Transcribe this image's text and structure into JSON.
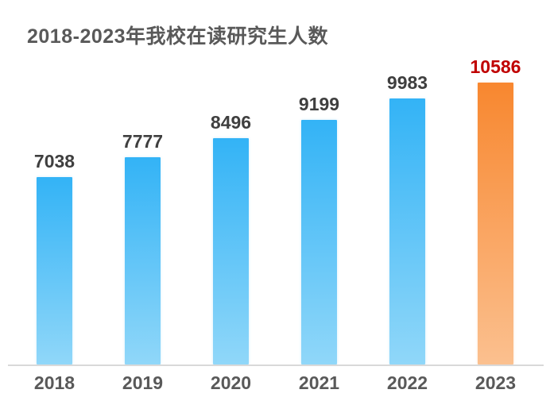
{
  "chart_data": {
    "type": "bar",
    "title": "2018-2023年我校在读研究生人数",
    "categories": [
      "2018",
      "2019",
      "2020",
      "2021",
      "2022",
      "2023"
    ],
    "values": [
      7038,
      7777,
      8496,
      9199,
      9983,
      10586
    ],
    "xlabel": "",
    "ylabel": "",
    "ylim": [
      0,
      10586
    ],
    "grid": false,
    "legend": false,
    "data_labels_shown": true,
    "highlight_index": 5,
    "colors": {
      "bar_gradient_top": "#33B3F6",
      "bar_gradient_bottom": "#90D7F9",
      "highlight_gradient_top": "#F8872F",
      "highlight_gradient_bottom": "#FBC08F",
      "value_label": "#3F3F3F",
      "highlight_value_label": "#C00000",
      "axis_line": "#D9D9D9",
      "title": "#595959",
      "tick_label": "#595959"
    }
  }
}
